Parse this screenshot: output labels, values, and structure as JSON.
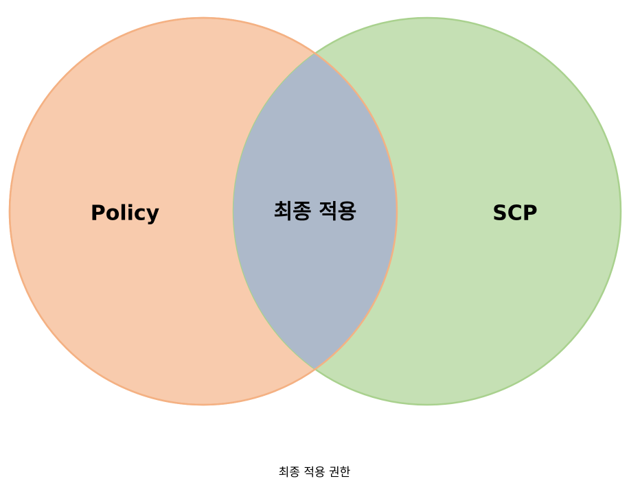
{
  "diagram": {
    "left_set": {
      "label": "Policy",
      "fill": "#f8cbad",
      "stroke": "#f4b183"
    },
    "right_set": {
      "label": "SCP",
      "fill": "#c5e0b4",
      "stroke": "#a9d18e"
    },
    "intersection": {
      "label": "최종 적용",
      "fill": "#adb9ca"
    },
    "caption": "최종 적용 권한"
  }
}
